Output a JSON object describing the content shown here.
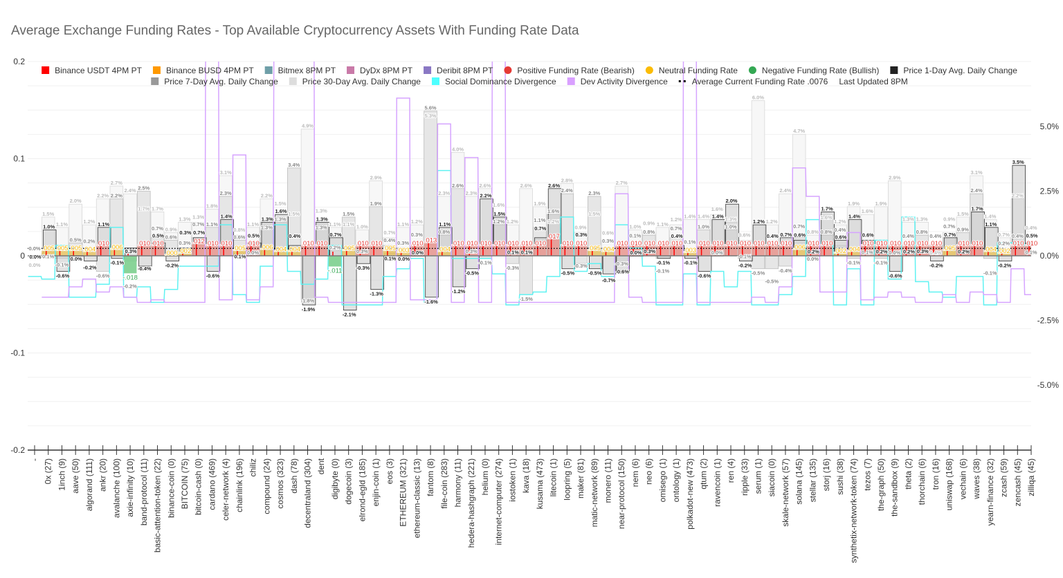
{
  "chart_data": {
    "type": "bar",
    "title": "Average Exchange Funding Rates - Top Available Cryptocurrency Assets With Funding Rate Data",
    "ylim_left": [
      -0.2,
      0.2
    ],
    "yticks_left": [
      "0.2",
      "0.1",
      "0",
      "-0.1",
      "-0.2"
    ],
    "ylim_right_pct": [
      -7.5,
      7.5
    ],
    "yticks_right": [
      "5.0%",
      "2.5%",
      "0.0%",
      "-2.5%",
      "-5.0%"
    ],
    "grid": true,
    "legend_placement": "top",
    "legend": [
      {
        "name": "Binance USDT 4PM PT",
        "color": "#ff0000",
        "shape": "square"
      },
      {
        "name": "Binance BUSD 4PM PT",
        "color": "#ff9900",
        "shape": "square"
      },
      {
        "name": "Bitmex 8PM PT",
        "color": "#6f9fa8",
        "shape": "square"
      },
      {
        "name": "DyDx 8PM PT",
        "color": "#c97aa8",
        "shape": "square"
      },
      {
        "name": "Deribit 8PM PT",
        "color": "#8a78c4",
        "shape": "square"
      },
      {
        "name": "Positive Funding Rate (Bearish)",
        "color": "#e53935",
        "shape": "circle"
      },
      {
        "name": "Neutral Funding Rate",
        "color": "#fbbc05",
        "shape": "circle"
      },
      {
        "name": "Negative Funding Rate (Bullish)",
        "color": "#34a853",
        "shape": "circle"
      },
      {
        "name": "Price 1-Day Avg. Daily Change",
        "color": "#222222",
        "shape": "square"
      },
      {
        "name": "Price 7-Day Avg. Daily Change",
        "color": "#999999",
        "shape": "square"
      },
      {
        "name": "Price 30-Day Avg. Daily Change",
        "color": "#dddddd",
        "shape": "square"
      },
      {
        "name": "Social Dominance Divergence",
        "color": "#4dffff",
        "shape": "square"
      },
      {
        "name": "Dev Activity Divergence",
        "color": "#d9a0ff",
        "shape": "square"
      },
      {
        "name": "Average Current Funding Rate .0076",
        "color": "#000000",
        "shape": "dots"
      },
      {
        "name": "Last Updated 8PM",
        "color": "",
        "shape": "none"
      }
    ],
    "average_funding_rate": 0.0076,
    "categories": [
      "-",
      "0x (27)",
      "1inch (9)",
      "aave (50)",
      "algorand (111)",
      "ankr (20)",
      "avalanche (100)",
      "axie-infinity (10)",
      "band-protocol (11)",
      "basic-attention-token (22)",
      "binance-coin (0)",
      "BITCOIN (75)",
      "bitcoin-cash (0)",
      "cardano (469)",
      "celer-network (4)",
      "chainlink (196)",
      "chiliz",
      "compound (24)",
      "cosmos (323)",
      "dash (78)",
      "decentraland (304)",
      "dent",
      "digibyte (0)",
      "dogecoin (3)",
      "elrond-egld (185)",
      "enjin-coin (1)",
      "eos (3)",
      "ETHEREUM (321)",
      "ethereum-classic (13)",
      "fantom (8)",
      "file-coin (283)",
      "harmony (11)",
      "hedera-hashgraph (221)",
      "helium (0)",
      "internet-computer (274)",
      "iostoken (1)",
      "kava (18)",
      "kusama (473)",
      "litecoin (1)",
      "loopring (5)",
      "maker (81)",
      "matic-network (89)",
      "monero (11)",
      "near-protocol (150)",
      "nem (6)",
      "neo (6)",
      "omisego (1)",
      "ontology (1)",
      "polkadot-new (473)",
      "qtum (2)",
      "ravencoin (1)",
      "ren (4)",
      "ripple (33)",
      "serum (1)",
      "siacoin (0)",
      "skale-network (57)",
      "solana (145)",
      "stellar (135)",
      "storj (16)",
      "sushi (38)",
      "synthetix-network-token (74)",
      "tezos (7)",
      "the-graph (50)",
      "the-sandbox (9)",
      "theta (2)",
      "thorchain (6)",
      "tron (16)",
      "uniswap (168)",
      "vechain (6)",
      "waves (38)",
      "yearn-finance (32)",
      "zcash (59)",
      "zencash (45)",
      "zilliqa (45)"
    ],
    "funding_rate": [
      null,
      0.005,
      0.005,
      0.005,
      0.004,
      0.01,
      0.006,
      -0.018,
      0.01,
      0.01,
      0.0,
      0.002,
      0.012,
      0.01,
      0.01,
      0.005,
      0.01,
      0.006,
      0.004,
      0.004,
      0.01,
      0.01,
      -0.011,
      0.005,
      0.01,
      0.01,
      0.005,
      0.003,
      0.01,
      0.013,
      0.004,
      0.01,
      0.01,
      0.01,
      0.01,
      0.01,
      0.01,
      0.01,
      0.017,
      0.01,
      0.01,
      0.005,
      0.004,
      0.01,
      0.01,
      0.01,
      0.01,
      0.01,
      0.003,
      0.01,
      0.01,
      0.01,
      0.01,
      0.01,
      0.01,
      0.01,
      0.006,
      0.01,
      0.01,
      0.002,
      0.004,
      0.01,
      0.01,
      0.01,
      0.01,
      0.01,
      0.01,
      0.005,
      0.01,
      0.01,
      0.004,
      0.002,
      0.01,
      0.01
    ],
    "price_1d_pct": [
      0.0,
      1.0,
      -0.6,
      0.0,
      -0.2,
      1.1,
      -0.1,
      0.3,
      -0.4,
      0.5,
      -0.2,
      0.3,
      0.7,
      -0.6,
      1.4,
      0.1,
      0.5,
      1.3,
      1.6,
      0.4,
      -1.9,
      1.3,
      0.7,
      -2.1,
      -0.3,
      -1.3,
      0.1,
      0.0,
      0.0,
      -1.6,
      1.1,
      -1.2,
      -0.5,
      2.2,
      1.5,
      0.1,
      0.1,
      0.7,
      2.6,
      -0.5,
      0.3,
      -0.5,
      -0.7,
      -0.6,
      0.0,
      0.3,
      -0.1,
      0.4,
      -0.1,
      -0.6,
      1.4,
      2.0,
      -0.2,
      1.2,
      0.4,
      0.7,
      0.6,
      0.2,
      1.7,
      0.6,
      1.4,
      0.6,
      0.2,
      -0.6,
      0.2,
      0.3,
      -0.2,
      0.7,
      0.2,
      1.7,
      1.1,
      -0.2,
      3.5,
      0.5
    ],
    "price_7d_pct": [
      0.0,
      0.1,
      -0.1,
      0.5,
      0.2,
      -0.6,
      2.2,
      -0.2,
      2.5,
      0.7,
      0.6,
      0.3,
      0.7,
      1.1,
      2.3,
      0.6,
      0.0,
      1.3,
      1.3,
      3.4,
      -1.8,
      1.3,
      0.2,
      1.5,
      0.3,
      1.9,
      0.4,
      0.3,
      0.3,
      5.6,
      0.8,
      2.6,
      0.3,
      -0.1,
      1.2,
      -0.3,
      -1.5,
      1.1,
      1.6,
      2.4,
      -0.3,
      2.3,
      0.3,
      -0.3,
      0.1,
      0.8,
      -0.1,
      0.7,
      0.1,
      1.0,
      0.0,
      1.0,
      -0.1,
      -0.5,
      -0.5,
      -0.4,
      0.7,
      0.0,
      0.8,
      0.4,
      -0.1,
      0.1,
      -0.1,
      0.0,
      0.4,
      0.8,
      0.4,
      0.7,
      0.9,
      2.4,
      -0.1,
      0.2,
      0.4,
      0.1
    ],
    "price_30d_pct": [
      0.0,
      1.5,
      1.1,
      2.0,
      1.2,
      2.2,
      2.7,
      2.4,
      1.7,
      1.7,
      0.9,
      1.3,
      1.3,
      1.8,
      3.1,
      0.8,
      1.1,
      2.2,
      1.5,
      1.5,
      4.9,
      1.3,
      1.1,
      1.1,
      1.0,
      2.9,
      0.7,
      1.1,
      1.2,
      5.3,
      2.3,
      4.0,
      2.3,
      2.6,
      1.6,
      1.2,
      2.6,
      1.9,
      1.2,
      2.8,
      0.9,
      1.5,
      0.6,
      2.7,
      1.0,
      0.9,
      1.1,
      1.2,
      1.4,
      1.4,
      1.6,
      1.3,
      0.6,
      6.0,
      1.2,
      2.4,
      4.7,
      0.8,
      1.6,
      1.2,
      1.9,
      1.6,
      1.9,
      2.9,
      1.3,
      1.3,
      0.4,
      0.9,
      1.5,
      3.1,
      1.4,
      0.7,
      2.2,
      0.4
    ],
    "social_dominance_divergence_pct": [
      -0.8,
      -0.9,
      0.4,
      -1.6,
      -1.6,
      -1.1,
      1.1,
      -1.6,
      -1.2,
      -1.8,
      -1.3,
      -0.4,
      -0.4,
      -0.4,
      1.2,
      -1.5,
      -1.8,
      -0.4,
      1.2,
      -0.6,
      -1.1,
      -0.9,
      0.4,
      -1.9,
      -1.9,
      -1.9,
      -0.8,
      -0.5,
      -0.1,
      -1.8,
      3.3,
      -0.1,
      -0.1,
      -0.1,
      -0.7,
      -1.9,
      -1.5,
      -1.4,
      -0.8,
      1.5,
      -0.6,
      -0.3,
      -0.8,
      1.2,
      0.3,
      -0.4,
      -1.9,
      -1.9,
      -0.7,
      -1.9,
      -0.6,
      -1.2,
      -0.6,
      -1.9,
      -1.9,
      -1.5,
      -0.8,
      1.4,
      0.4,
      -1.9,
      -0.5,
      -1.9,
      0.6,
      -0.9,
      1.5,
      -1.0,
      -1.4,
      -1.6,
      -0.8,
      -0.8,
      -1.9,
      0.5,
      0.5,
      0.4
    ],
    "dev_activity_divergence_pct": [
      null,
      -1.6,
      -1.6,
      -1.2,
      -0.9,
      -1.4,
      -1.2,
      -1.6,
      -1.8,
      -1.7,
      -1.8,
      -1.8,
      -1.8,
      10,
      -1.7,
      3.9,
      -1.7,
      -1.2,
      10,
      10,
      10,
      -1.6,
      -1.8,
      -1.8,
      -1.8,
      -1.8,
      -1.8,
      6.1,
      -1.7,
      -1.7,
      5.1,
      -1.8,
      3.8,
      -1.8,
      10,
      -1.8,
      -1.8,
      -1.8,
      -1.8,
      -1.8,
      -1.8,
      -1.8,
      -1.8,
      2.4,
      -1.6,
      -1.8,
      -1.8,
      -1.8,
      10,
      -1.8,
      -1.8,
      -1.8,
      -1.8,
      -1.6,
      -1.8,
      -1.2,
      3.4,
      2.3,
      -1.4,
      -1.4,
      0.9,
      -1.7,
      -1.6,
      -1.4,
      -1.6,
      -1.8,
      -1.8,
      -1.5,
      -1.8,
      -1.4,
      -1.5,
      -1.8,
      -0.5,
      -1.5
    ]
  }
}
